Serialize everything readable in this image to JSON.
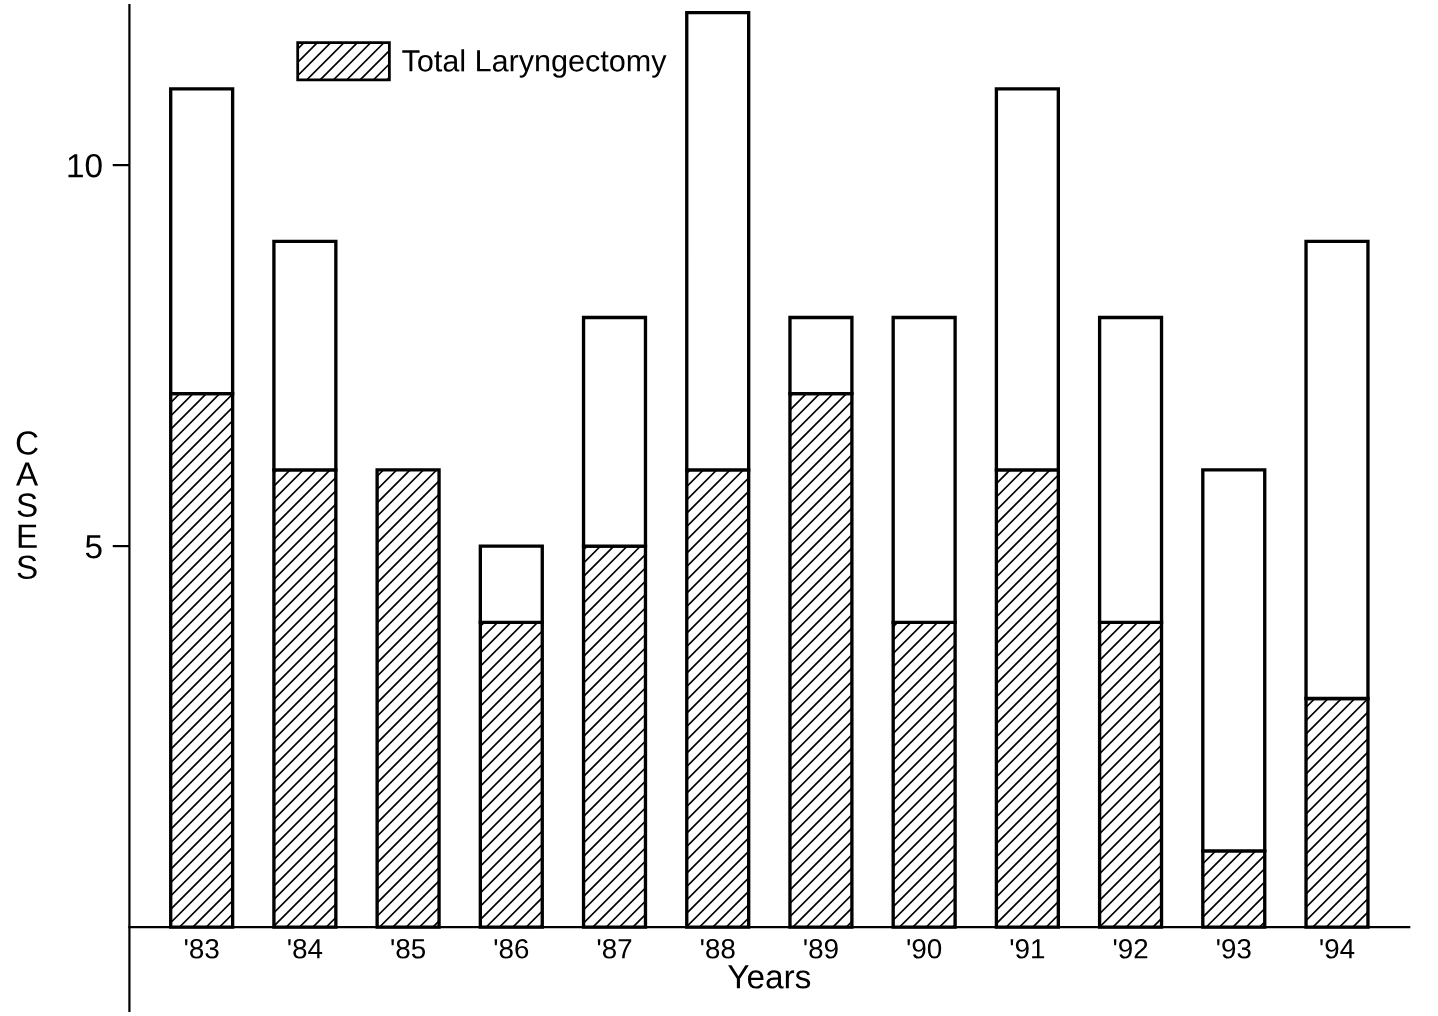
{
  "chart_data": {
    "type": "bar",
    "stacked": true,
    "xlabel": "Years",
    "ylabel": "CASES",
    "categories": [
      "'83",
      "'84",
      "'85",
      "'86",
      "'87",
      "'88",
      "'89",
      "'90",
      "'91",
      "'92",
      "'93",
      "'94"
    ],
    "series": [
      {
        "name": "Total Laryngectomy",
        "color": "#000000",
        "values": [
          7,
          6,
          6,
          4,
          5,
          6,
          7,
          4,
          6,
          4,
          1,
          3
        ]
      },
      {
        "color": "#ffffff",
        "values": [
          4,
          3,
          null,
          1,
          3,
          6,
          1,
          4,
          5,
          4,
          5,
          6
        ]
      }
    ],
    "ylim": [
      -1.1,
      12.1
    ],
    "yticks": [
      5,
      10
    ],
    "grid": false,
    "legend": "top left"
  }
}
